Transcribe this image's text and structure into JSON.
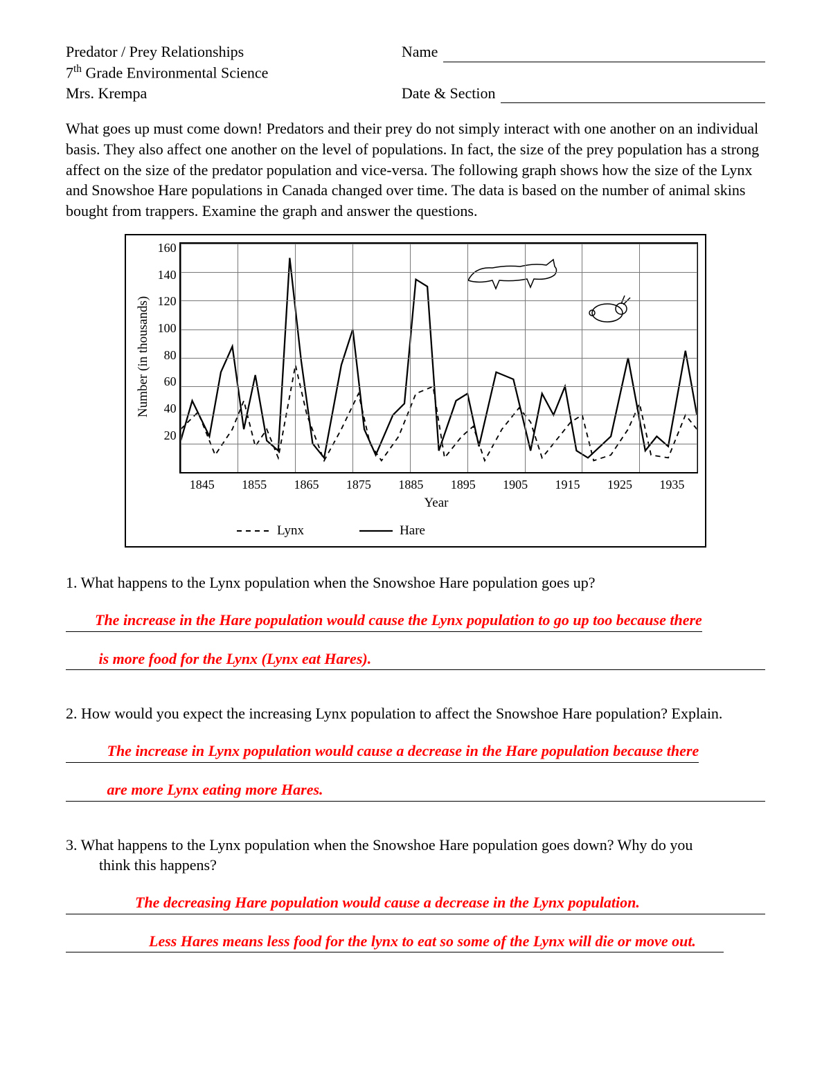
{
  "header": {
    "title": "Predator / Prey Relationships",
    "course_prefix": "7",
    "course_super": "th",
    "course_rest": " Grade Environmental Science",
    "teacher": "Mrs. Krempa",
    "name_label": "Name",
    "date_label": "Date & Section"
  },
  "intro": "What goes up must come down!  Predators and their prey do not simply interact with one another on an individual basis.  They also affect one another on the level of populations.  In fact, the size of the prey population has a strong affect on the size of the predator population and vice-versa.  The following graph shows how the size of the Lynx and Snowshoe Hare populations in Canada changed over time.  The data is based on the number of animal skins bought from trappers.  Examine the graph and answer the questions.",
  "chart": {
    "type": "line",
    "xlabel": "Year",
    "ylabel": "Number (in thousands)",
    "x_ticks": [
      "1845",
      "1855",
      "1865",
      "1875",
      "1885",
      "1895",
      "1905",
      "1915",
      "1925",
      "1935"
    ],
    "x_min": 1845,
    "x_max": 1935,
    "y_ticks": [
      160,
      140,
      120,
      100,
      80,
      60,
      40,
      20
    ],
    "y_min": 0,
    "y_max": 160,
    "grid_color": "#777777",
    "background_color": "#ffffff",
    "legend": {
      "lynx": "Lynx",
      "hare": "Hare"
    },
    "hare": {
      "stroke": "#000000",
      "width": 2.2,
      "dash": "none",
      "points": [
        [
          1845,
          22
        ],
        [
          1847,
          50
        ],
        [
          1850,
          25
        ],
        [
          1852,
          70
        ],
        [
          1854,
          88
        ],
        [
          1856,
          30
        ],
        [
          1858,
          68
        ],
        [
          1860,
          22
        ],
        [
          1862,
          15
        ],
        [
          1864,
          150
        ],
        [
          1866,
          78
        ],
        [
          1868,
          20
        ],
        [
          1870,
          10
        ],
        [
          1873,
          75
        ],
        [
          1875,
          100
        ],
        [
          1877,
          30
        ],
        [
          1879,
          12
        ],
        [
          1882,
          40
        ],
        [
          1884,
          48
        ],
        [
          1886,
          135
        ],
        [
          1888,
          130
        ],
        [
          1890,
          15
        ],
        [
          1893,
          50
        ],
        [
          1895,
          55
        ],
        [
          1897,
          18
        ],
        [
          1900,
          70
        ],
        [
          1903,
          65
        ],
        [
          1906,
          15
        ],
        [
          1908,
          55
        ],
        [
          1910,
          40
        ],
        [
          1912,
          60
        ],
        [
          1914,
          15
        ],
        [
          1916,
          10
        ],
        [
          1920,
          25
        ],
        [
          1923,
          80
        ],
        [
          1926,
          15
        ],
        [
          1928,
          25
        ],
        [
          1930,
          18
        ],
        [
          1933,
          85
        ],
        [
          1935,
          40
        ]
      ]
    },
    "lynx": {
      "stroke": "#000000",
      "width": 1.8,
      "dash": "7 6",
      "points": [
        [
          1845,
          30
        ],
        [
          1848,
          42
        ],
        [
          1851,
          12
        ],
        [
          1854,
          30
        ],
        [
          1856,
          50
        ],
        [
          1858,
          18
        ],
        [
          1860,
          30
        ],
        [
          1862,
          10
        ],
        [
          1865,
          75
        ],
        [
          1867,
          40
        ],
        [
          1870,
          8
        ],
        [
          1873,
          30
        ],
        [
          1876,
          55
        ],
        [
          1878,
          20
        ],
        [
          1880,
          8
        ],
        [
          1883,
          25
        ],
        [
          1886,
          55
        ],
        [
          1889,
          60
        ],
        [
          1891,
          10
        ],
        [
          1894,
          25
        ],
        [
          1896,
          32
        ],
        [
          1898,
          8
        ],
        [
          1901,
          30
        ],
        [
          1904,
          45
        ],
        [
          1906,
          35
        ],
        [
          1908,
          10
        ],
        [
          1910,
          20
        ],
        [
          1913,
          35
        ],
        [
          1915,
          40
        ],
        [
          1917,
          8
        ],
        [
          1920,
          12
        ],
        [
          1923,
          30
        ],
        [
          1925,
          48
        ],
        [
          1927,
          12
        ],
        [
          1930,
          10
        ],
        [
          1933,
          40
        ],
        [
          1935,
          30
        ]
      ]
    }
  },
  "q1": {
    "text": "1.  What happens to the Lynx population when the Snowshoe Hare population goes up?",
    "ans1": "The increase in the Hare population would cause the Lynx population to go up too because there",
    "ans2": " is more food for the Lynx (Lynx eat Hares). "
  },
  "q2": {
    "text": "2.  How would you expect the increasing Lynx population to affect the Snowshoe Hare population?  Explain.",
    "ans1": " The increase in Lynx population would cause a decrease in the Hare population because there",
    "ans2": " are more Lynx eating more Hares. "
  },
  "q3": {
    "text_line1": "3.  What happens to the Lynx population when the Snowshoe Hare population goes down?  Why do you",
    "text_line2": "think this happens?",
    "ans1": "The decreasing Hare population would cause a decrease in the Lynx population. ",
    "ans2": "Less Hares means less food for the lynx to eat so some of the Lynx will die or move out."
  },
  "colors": {
    "text": "#000000",
    "answer": "#ff0000",
    "line": "#000000"
  }
}
